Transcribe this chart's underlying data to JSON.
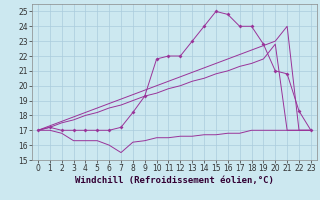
{
  "background_color": "#cce8f0",
  "grid_color": "#aaccdd",
  "line_color": "#993399",
  "xlim": [
    -0.5,
    23.5
  ],
  "ylim": [
    15,
    25.5
  ],
  "yticks": [
    15,
    16,
    17,
    18,
    19,
    20,
    21,
    22,
    23,
    24,
    25
  ],
  "xticks": [
    0,
    1,
    2,
    3,
    4,
    5,
    6,
    7,
    8,
    9,
    10,
    11,
    12,
    13,
    14,
    15,
    16,
    17,
    18,
    19,
    20,
    21,
    22,
    23
  ],
  "xlabel": "Windchill (Refroidissement éolien,°C)",
  "xlabel_fontsize": 6.5,
  "tick_fontsize": 5.5,
  "series_windchill_x": [
    0,
    1,
    2,
    3,
    4,
    5,
    6,
    7,
    8,
    9,
    10,
    11,
    12,
    13,
    14,
    15,
    16,
    17,
    18,
    19,
    20,
    21,
    22,
    23
  ],
  "series_windchill_y": [
    17.0,
    17.0,
    16.8,
    16.3,
    16.3,
    16.3,
    16.0,
    15.5,
    16.2,
    16.3,
    16.5,
    16.5,
    16.6,
    16.6,
    16.7,
    16.7,
    16.8,
    16.8,
    17.0,
    17.0,
    17.0,
    17.0,
    17.0,
    17.0
  ],
  "series_temp_x": [
    0,
    1,
    2,
    3,
    4,
    5,
    6,
    7,
    8,
    9,
    10,
    11,
    12,
    13,
    14,
    15,
    16,
    17,
    18,
    19,
    20,
    21,
    22,
    23
  ],
  "series_temp_y": [
    17.0,
    17.2,
    17.0,
    17.0,
    17.0,
    17.0,
    17.0,
    17.2,
    18.2,
    19.3,
    21.8,
    22.0,
    22.0,
    23.0,
    24.0,
    25.0,
    24.8,
    24.0,
    24.0,
    22.8,
    21.0,
    20.8,
    18.3,
    17.0
  ],
  "series_diag1_x": [
    0,
    1,
    2,
    3,
    4,
    5,
    6,
    7,
    8,
    9,
    10,
    11,
    12,
    13,
    14,
    15,
    16,
    17,
    18,
    19,
    20,
    21,
    22,
    23
  ],
  "series_diag1_y": [
    17.0,
    17.2,
    17.5,
    17.7,
    18.0,
    18.2,
    18.5,
    18.7,
    19.0,
    19.3,
    19.5,
    19.8,
    20.0,
    20.3,
    20.5,
    20.8,
    21.0,
    21.3,
    21.5,
    21.8,
    22.8,
    17.0,
    17.0,
    17.0
  ],
  "series_diag2_x": [
    0,
    1,
    2,
    3,
    4,
    5,
    6,
    7,
    8,
    9,
    10,
    11,
    12,
    13,
    14,
    15,
    16,
    17,
    18,
    19,
    20,
    21,
    22,
    23
  ],
  "series_diag2_y": [
    17.0,
    17.3,
    17.6,
    17.9,
    18.2,
    18.5,
    18.8,
    19.1,
    19.4,
    19.7,
    20.0,
    20.3,
    20.6,
    20.9,
    21.2,
    21.5,
    21.8,
    22.1,
    22.4,
    22.7,
    23.0,
    24.0,
    17.0,
    17.0
  ]
}
